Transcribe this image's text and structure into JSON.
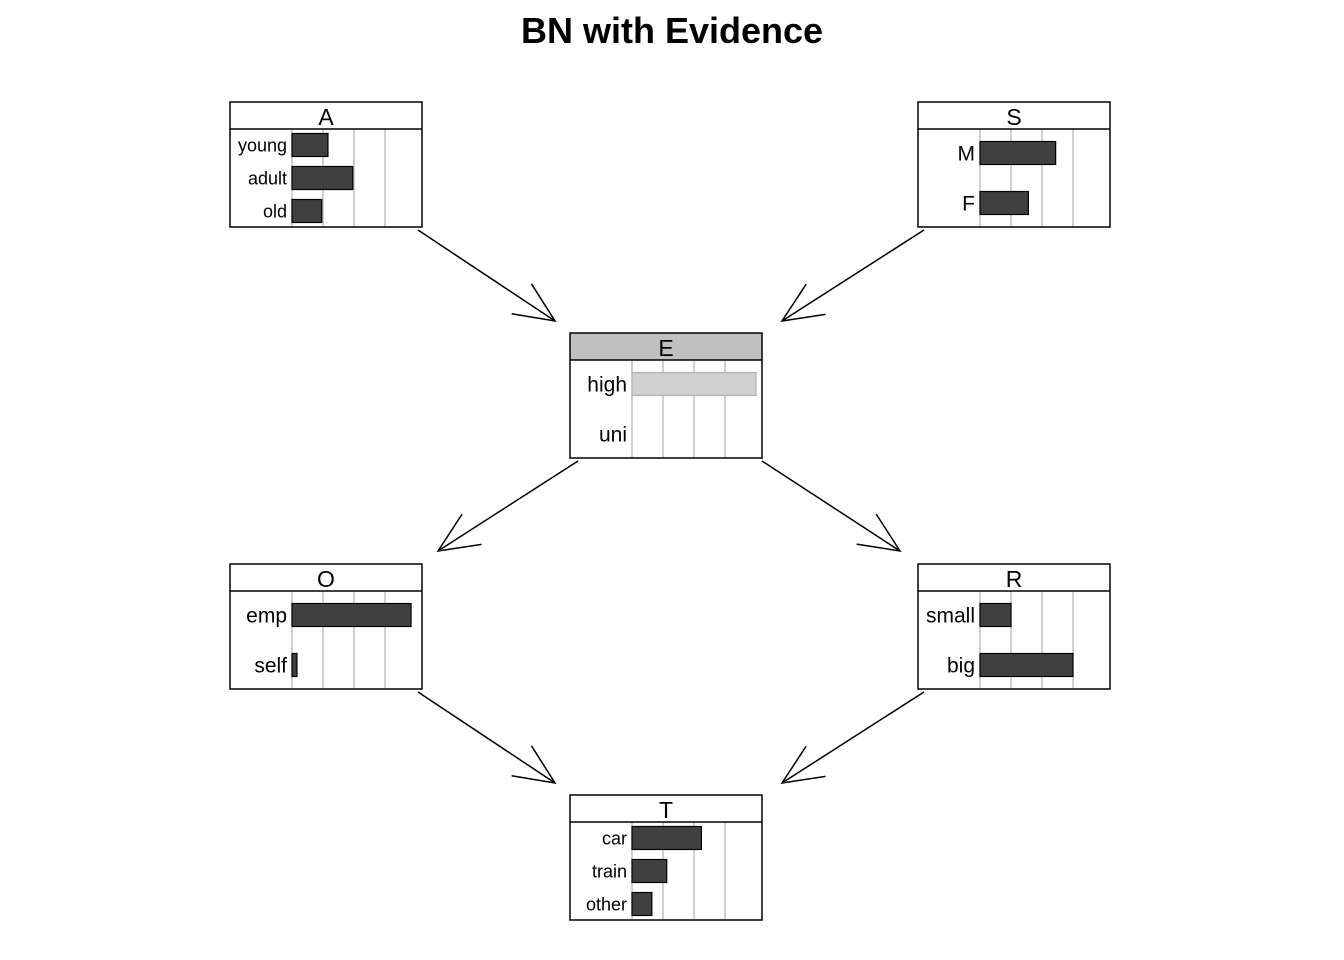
{
  "title": "BN with Evidence",
  "colors": {
    "bar": "#404040",
    "evidence_bar": "#d0d0d0",
    "evidence_header": "#c0c0c0",
    "grid": "#b0b0b0",
    "border": "#000000",
    "arrow": "#000000"
  },
  "nodes": [
    {
      "id": "A",
      "title": "A",
      "evidence": false,
      "states": [
        {
          "label": "young",
          "prob": 0.29
        },
        {
          "label": "adult",
          "prob": 0.49
        },
        {
          "label": "old",
          "prob": 0.24
        }
      ]
    },
    {
      "id": "S",
      "title": "S",
      "evidence": false,
      "states": [
        {
          "label": "M",
          "prob": 0.61
        },
        {
          "label": "F",
          "prob": 0.39
        }
      ]
    },
    {
      "id": "E",
      "title": "E",
      "evidence": true,
      "states": [
        {
          "label": "high",
          "prob": 1.0
        },
        {
          "label": "uni",
          "prob": 0.0
        }
      ]
    },
    {
      "id": "O",
      "title": "O",
      "evidence": false,
      "states": [
        {
          "label": "emp",
          "prob": 0.96
        },
        {
          "label": "self",
          "prob": 0.04
        }
      ]
    },
    {
      "id": "R",
      "title": "R",
      "evidence": false,
      "states": [
        {
          "label": "small",
          "prob": 0.25
        },
        {
          "label": "big",
          "prob": 0.75
        }
      ]
    },
    {
      "id": "T",
      "title": "T",
      "evidence": false,
      "states": [
        {
          "label": "car",
          "prob": 0.56
        },
        {
          "label": "train",
          "prob": 0.28
        },
        {
          "label": "other",
          "prob": 0.16
        }
      ]
    }
  ],
  "edges": [
    {
      "from": "A",
      "to": "E"
    },
    {
      "from": "S",
      "to": "E"
    },
    {
      "from": "E",
      "to": "O"
    },
    {
      "from": "E",
      "to": "R"
    },
    {
      "from": "O",
      "to": "T"
    },
    {
      "from": "R",
      "to": "T"
    }
  ]
}
